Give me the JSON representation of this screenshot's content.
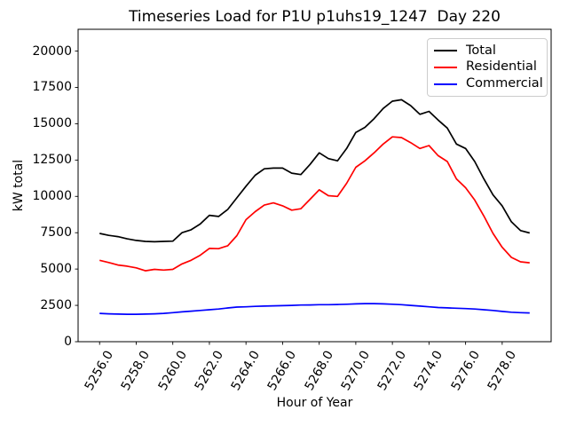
{
  "title": "Timeseries Load for P1U p1uhs19_1247  Day 220",
  "xlabel": "Hour of Year",
  "ylabel": "kW total",
  "legend": {
    "position": "upper right",
    "entries": [
      {
        "label": "Total",
        "color": "#000000"
      },
      {
        "label": "Residential",
        "color": "#ff0000"
      },
      {
        "label": "Commercial",
        "color": "#0000ff"
      }
    ]
  },
  "chart_data": {
    "type": "line",
    "title": "Timeseries Load for P1U p1uhs19_1247  Day 220",
    "xlabel": "Hour of Year",
    "ylabel": "kW total",
    "grid": false,
    "legend_position": "upper right",
    "xlim": [
      5254.825,
      5280.675
    ],
    "ylim": [
      0,
      21500
    ],
    "xticks": [
      5256,
      5258,
      5260,
      5262,
      5264,
      5266,
      5268,
      5270,
      5272,
      5274,
      5276,
      5278
    ],
    "xtick_labels": [
      "5256.0",
      "5258.0",
      "5260.0",
      "5262.0",
      "5264.0",
      "5266.0",
      "5268.0",
      "5270.0",
      "5272.0",
      "5274.0",
      "5276.0",
      "5278.0"
    ],
    "yticks": [
      0,
      2500,
      5000,
      7500,
      10000,
      12500,
      15000,
      17500,
      20000
    ],
    "ytick_labels": [
      "0",
      "2500",
      "5000",
      "7500",
      "10000",
      "12500",
      "15000",
      "17500",
      "20000"
    ],
    "x": [
      5256.0,
      5256.5,
      5257.0,
      5257.5,
      5258.0,
      5258.5,
      5259.0,
      5259.5,
      5260.0,
      5260.5,
      5261.0,
      5261.5,
      5262.0,
      5262.5,
      5263.0,
      5263.5,
      5264.0,
      5264.5,
      5265.0,
      5265.5,
      5266.0,
      5266.5,
      5267.0,
      5267.5,
      5268.0,
      5268.5,
      5269.0,
      5269.5,
      5270.0,
      5270.5,
      5271.0,
      5271.5,
      5272.0,
      5272.5,
      5273.0,
      5273.5,
      5274.0,
      5274.5,
      5275.0,
      5275.5,
      5276.0,
      5276.5,
      5277.0,
      5277.5,
      5278.0,
      5278.5,
      5279.0,
      5279.5
    ],
    "series": [
      {
        "name": "Total",
        "color": "#000000",
        "values": [
          7450,
          7320,
          7230,
          7080,
          6970,
          6900,
          6880,
          6900,
          6920,
          7500,
          7700,
          8100,
          8700,
          8620,
          9100,
          9900,
          10700,
          11450,
          11900,
          11950,
          11950,
          11600,
          11500,
          12200,
          13000,
          12600,
          12450,
          13300,
          14400,
          14750,
          15350,
          16050,
          16550,
          16650,
          16250,
          15650,
          15850,
          15250,
          14700,
          13600,
          13300,
          12400,
          11200,
          10100,
          9350,
          8250,
          7650,
          7480
        ]
      },
      {
        "name": "Residential",
        "color": "#ff0000",
        "values": [
          5600,
          5450,
          5280,
          5200,
          5080,
          4880,
          4980,
          4930,
          4980,
          5350,
          5600,
          5950,
          6420,
          6400,
          6600,
          7300,
          8400,
          8950,
          9400,
          9550,
          9350,
          9050,
          9150,
          9800,
          10450,
          10050,
          10000,
          10900,
          12000,
          12450,
          13000,
          13600,
          14100,
          14050,
          13700,
          13300,
          13500,
          12800,
          12400,
          11200,
          10600,
          9750,
          8650,
          7450,
          6500,
          5800,
          5500,
          5430
        ]
      },
      {
        "name": "Commercial",
        "color": "#0000ff",
        "values": [
          1950,
          1920,
          1900,
          1890,
          1890,
          1900,
          1920,
          1950,
          2000,
          2050,
          2100,
          2150,
          2200,
          2250,
          2320,
          2380,
          2400,
          2430,
          2450,
          2470,
          2480,
          2500,
          2520,
          2530,
          2550,
          2550,
          2560,
          2580,
          2600,
          2620,
          2620,
          2600,
          2580,
          2550,
          2500,
          2450,
          2400,
          2350,
          2330,
          2300,
          2280,
          2250,
          2200,
          2150,
          2080,
          2030,
          2000,
          1980
        ]
      }
    ]
  }
}
